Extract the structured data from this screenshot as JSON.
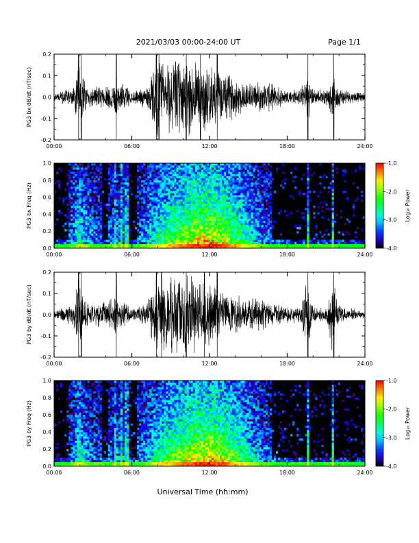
{
  "header": {
    "title": "2021/03/03  00:00-24:00 UT",
    "page_label": "Page 1/1"
  },
  "xlabel": "Universal Time (hh:mm)",
  "chart_data": [
    {
      "type": "line",
      "ylabel": "PG3 bx dB/dt (nT/sec)",
      "xlim_hours": [
        0,
        24
      ],
      "ylim": [
        -0.2,
        0.2
      ],
      "x_ticks": [
        "00:00",
        "06:00",
        "12:00",
        "18:00",
        "24:00"
      ],
      "y_ticks": [
        "-0.2",
        "-0.1",
        "0.0",
        "0.1",
        "0.2"
      ],
      "envelope": {
        "hours": [
          0,
          1.5,
          1.9,
          2.1,
          2.5,
          3,
          4,
          4.8,
          5,
          5.5,
          6,
          6.5,
          7.2,
          7.5,
          8,
          9,
          10,
          11,
          12,
          13,
          13.5,
          14,
          15,
          16,
          16.5,
          17,
          18,
          19,
          19.6,
          20,
          21,
          21.5,
          22,
          23,
          24
        ],
        "amplitude": [
          0.02,
          0.05,
          0.2,
          0.12,
          0.06,
          0.05,
          0.06,
          0.1,
          0.06,
          0.07,
          0.03,
          0.04,
          0.06,
          0.12,
          0.2,
          0.2,
          0.2,
          0.2,
          0.15,
          0.13,
          0.12,
          0.1,
          0.08,
          0.07,
          0.08,
          0.06,
          0.04,
          0.04,
          0.12,
          0.04,
          0.04,
          0.1,
          0.05,
          0.03,
          0.02
        ]
      },
      "spikes_hours": [
        1.9,
        2.1,
        4.8,
        7.9,
        8.1,
        10.2,
        11.3,
        12.6,
        19.6,
        21.6
      ]
    },
    {
      "type": "heatmap",
      "ylabel": "PG3 bx Freq (Hz)",
      "xlim_hours": [
        0,
        24
      ],
      "ylim": [
        0.0,
        1.0
      ],
      "x_ticks": [
        "00:00",
        "06:00",
        "12:00",
        "18:00",
        "24:00"
      ],
      "y_ticks": [
        "0.0",
        "0.2",
        "0.4",
        "0.6",
        "0.8",
        "1.0"
      ],
      "colorbar": {
        "label": "Log₁₀ Power",
        "range": [
          -4.0,
          -1.0
        ],
        "ticks": [
          "-1.0",
          "-2.0",
          "-3.0",
          "-4.0"
        ]
      },
      "activity_hours": [
        0,
        1,
        2,
        3,
        4,
        5,
        6,
        7,
        8,
        9,
        10,
        11,
        12,
        13,
        14,
        15,
        16,
        17,
        18,
        19,
        20,
        21,
        22,
        23,
        24
      ],
      "activity_level": [
        0.1,
        0.2,
        0.45,
        0.25,
        0.2,
        0.3,
        0.15,
        0.3,
        0.55,
        0.7,
        0.8,
        0.9,
        0.95,
        0.85,
        0.7,
        0.5,
        0.3,
        0.2,
        0.15,
        0.2,
        0.15,
        0.2,
        0.15,
        0.1,
        0.1
      ],
      "vertical_streaks_hours": [
        1.9,
        4.7,
        5.2,
        5.6,
        19.6,
        21.5
      ]
    },
    {
      "type": "line",
      "ylabel": "PG3 by dB/dt (nT/sec)",
      "xlim_hours": [
        0,
        24
      ],
      "ylim": [
        -0.2,
        0.2
      ],
      "x_ticks": [
        "00:00",
        "06:00",
        "12:00",
        "18:00",
        "24:00"
      ],
      "y_ticks": [
        "-0.2",
        "-0.1",
        "0.0",
        "0.1",
        "0.2"
      ],
      "envelope": {
        "hours": [
          0,
          1.5,
          1.9,
          2.1,
          2.5,
          3,
          4,
          4.8,
          5,
          5.5,
          6,
          6.5,
          7.2,
          7.5,
          8,
          9,
          10,
          11,
          12,
          13,
          13.5,
          14,
          15,
          16,
          16.5,
          17,
          18,
          19,
          19.6,
          20,
          21,
          21.5,
          22,
          23,
          24
        ],
        "amplitude": [
          0.02,
          0.06,
          0.2,
          0.14,
          0.07,
          0.06,
          0.07,
          0.12,
          0.07,
          0.07,
          0.03,
          0.04,
          0.07,
          0.14,
          0.2,
          0.2,
          0.2,
          0.2,
          0.17,
          0.14,
          0.12,
          0.1,
          0.09,
          0.08,
          0.07,
          0.06,
          0.04,
          0.04,
          0.2,
          0.04,
          0.04,
          0.2,
          0.05,
          0.03,
          0.02
        ]
      },
      "spikes_hours": [
        1.9,
        2.1,
        4.8,
        7.9,
        8.3,
        10.2,
        11.6,
        12.6,
        19.6,
        21.6
      ]
    },
    {
      "type": "heatmap",
      "ylabel": "PG3 by Freq (Hz)",
      "xlim_hours": [
        0,
        24
      ],
      "ylim": [
        0.0,
        1.0
      ],
      "x_ticks": [
        "00:00",
        "06:00",
        "12:00",
        "18:00",
        "24:00"
      ],
      "y_ticks": [
        "0.0",
        "0.2",
        "0.4",
        "0.6",
        "0.8",
        "1.0"
      ],
      "colorbar": {
        "label": "Log₁₀ Power",
        "range": [
          -4.0,
          -1.0
        ],
        "ticks": [
          "-1.0",
          "-2.0",
          "-3.0",
          "-4.0"
        ]
      },
      "activity_hours": [
        0,
        1,
        2,
        3,
        4,
        5,
        6,
        7,
        8,
        9,
        10,
        11,
        12,
        13,
        14,
        15,
        16,
        17,
        18,
        19,
        20,
        21,
        22,
        23,
        24
      ],
      "activity_level": [
        0.1,
        0.2,
        0.45,
        0.25,
        0.2,
        0.3,
        0.15,
        0.3,
        0.55,
        0.7,
        0.8,
        0.9,
        0.95,
        0.85,
        0.7,
        0.5,
        0.3,
        0.2,
        0.15,
        0.2,
        0.15,
        0.2,
        0.15,
        0.1,
        0.1
      ],
      "vertical_streaks_hours": [
        1.9,
        4.7,
        5.2,
        5.6,
        19.6,
        21.5
      ]
    }
  ]
}
